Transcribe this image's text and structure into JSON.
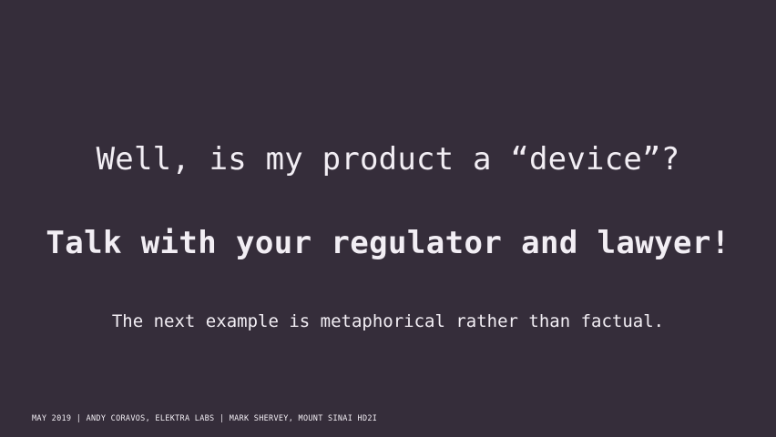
{
  "slide": {
    "question": "Well, is my product a “device”?",
    "answer": "Talk with your regulator and lawyer!",
    "note": "The next example is metaphorical rather than factual.",
    "footer": "MAY 2019 | ANDY CORAVOS, ELEKTRA LABS | MARK SHERVEY, MOUNT SINAI HD2I"
  },
  "colors": {
    "background": "#352d3a",
    "text": "#f2eef4"
  }
}
